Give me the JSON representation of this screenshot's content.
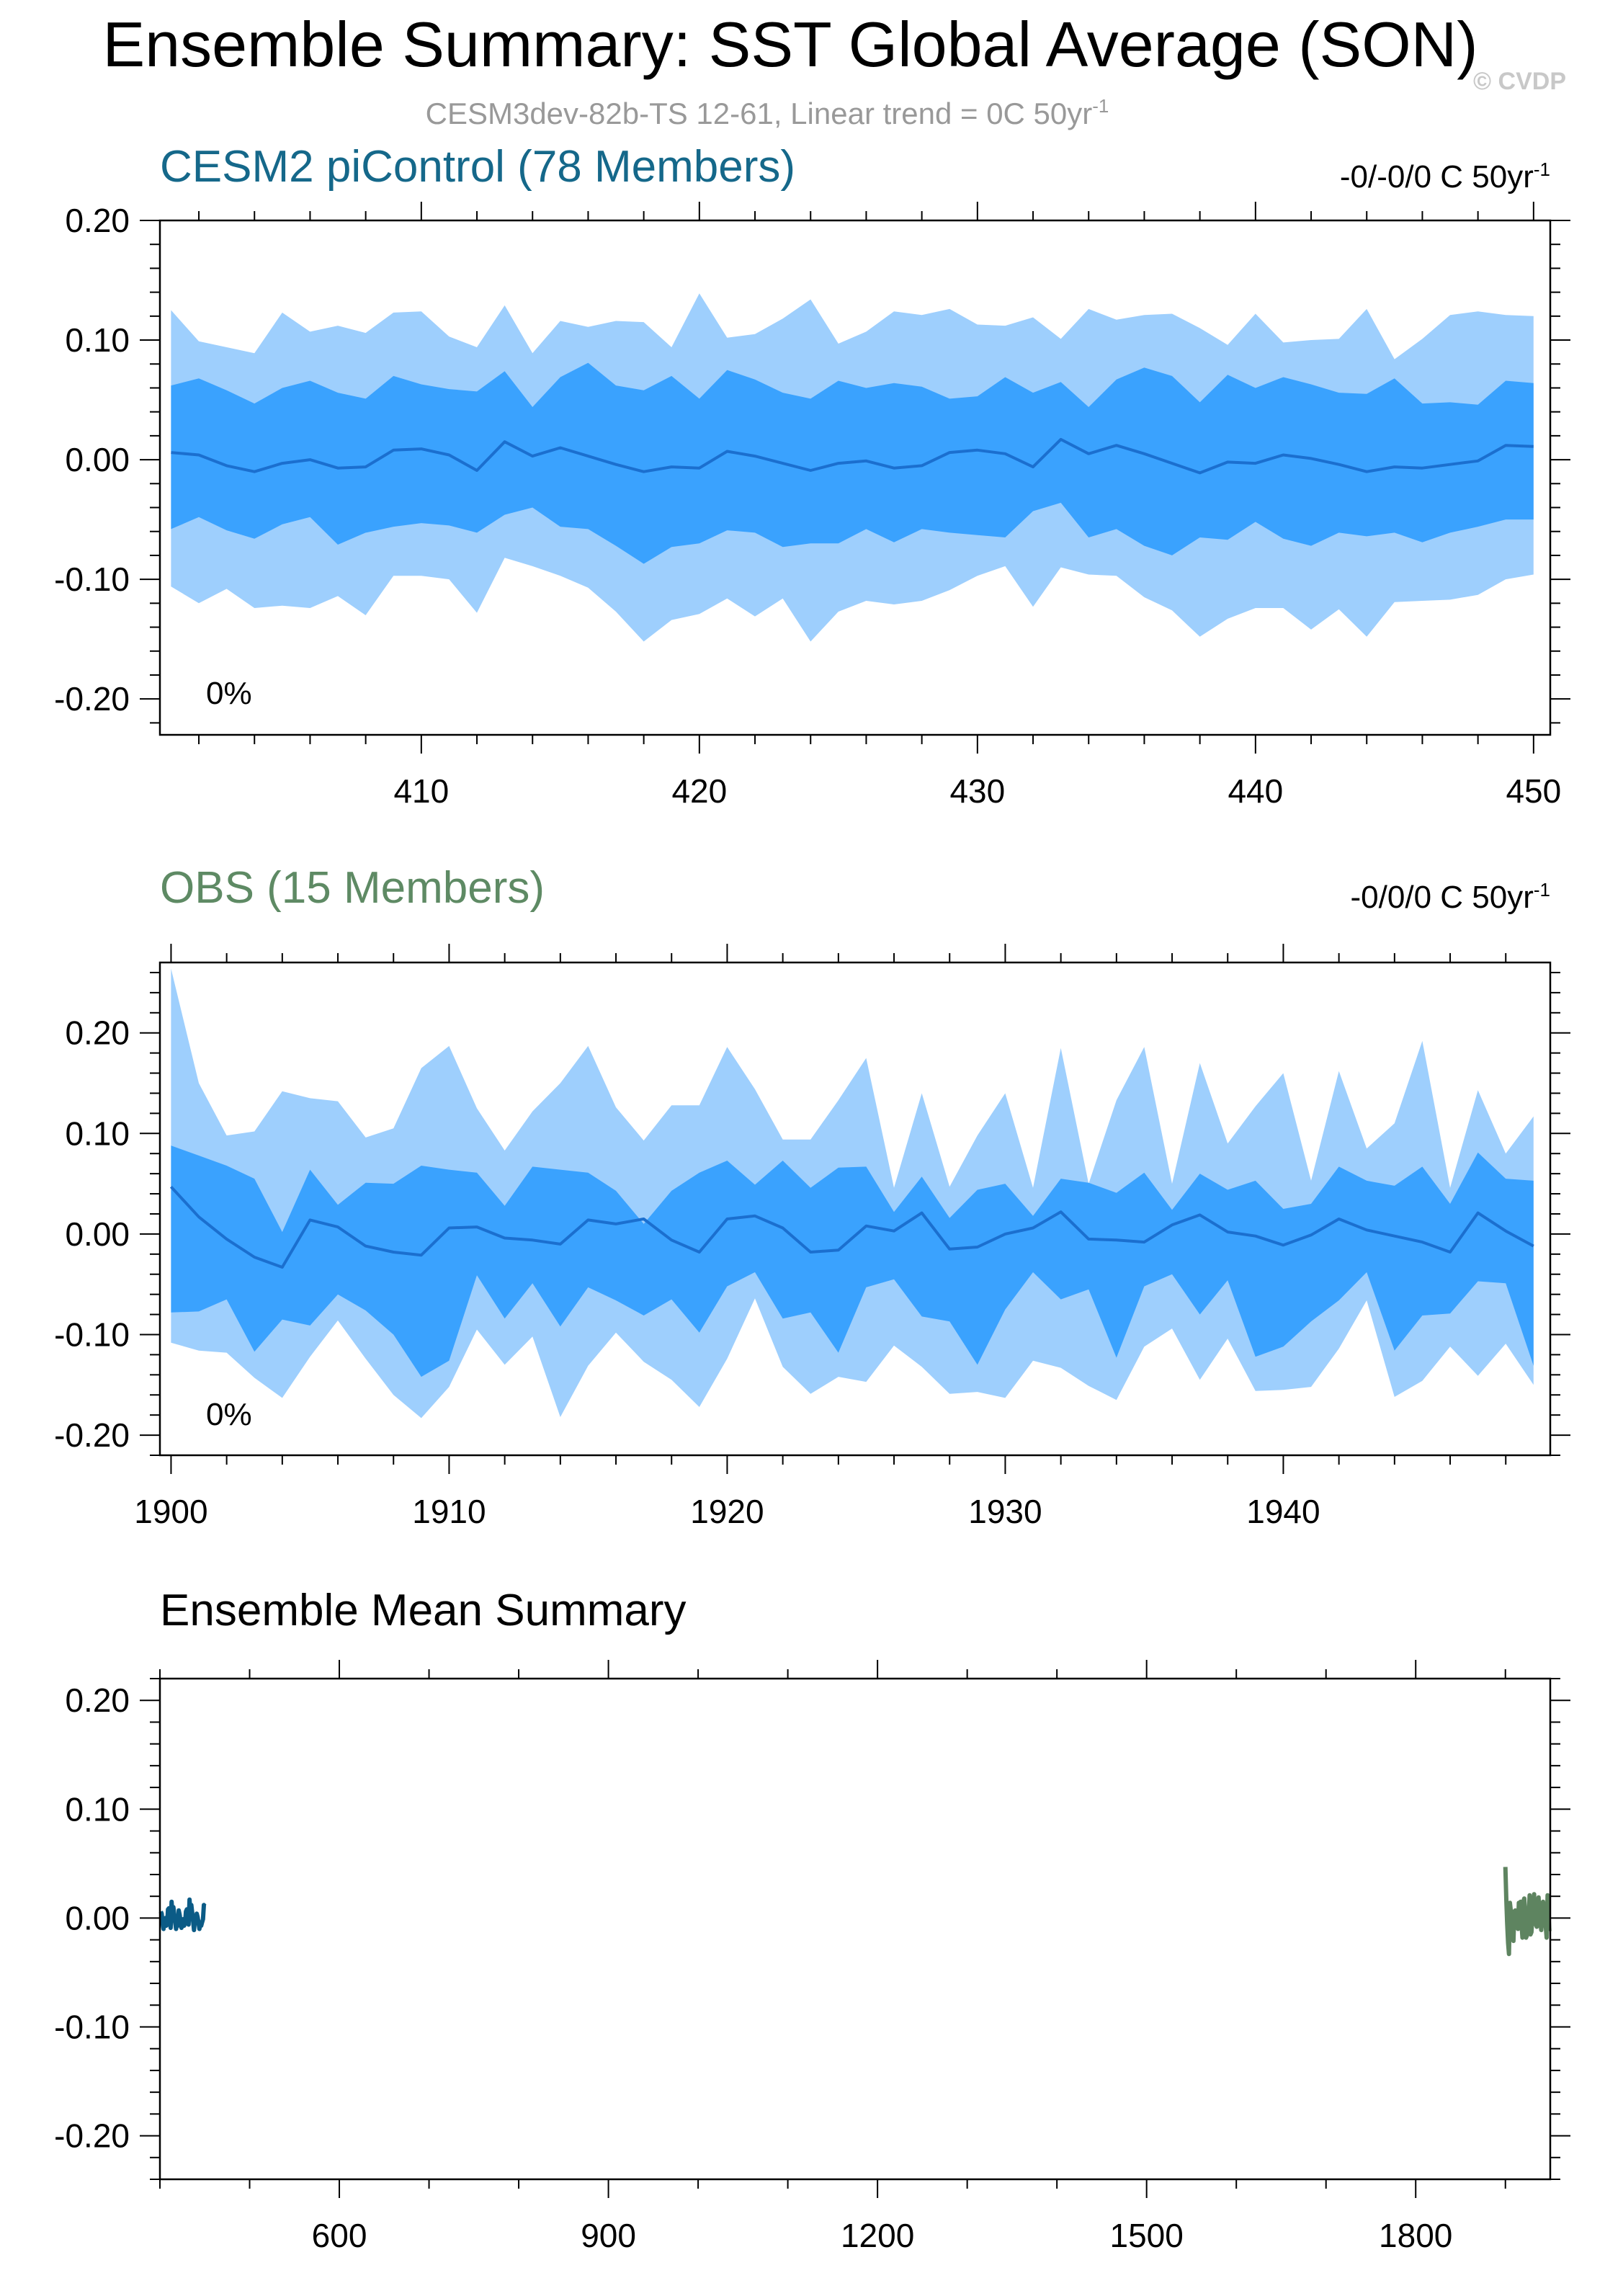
{
  "title": "Ensemble Summary: SST Global Average (SON)",
  "subtitle": "CESM3dev-82b-TS 12-61, Linear trend = 0C 50yr",
  "subtitle_sup": "-1",
  "watermark": "© CVDP",
  "colors": {
    "band_outer": "#9ecffd",
    "band_inner": "#3aa2fe",
    "model_mean": "#1b6fcf",
    "model_title": "#15688a",
    "obs_title": "#5e8a64",
    "summary_model": "#0b5b86",
    "summary_obs": "#5e8460",
    "axis": "#000000",
    "subtitle": "#999999",
    "watermark": "#c8c8c8"
  },
  "chart_data": [
    {
      "type": "area",
      "name": "CESM2 piControl",
      "title": "CESM2 piControl (78 Members)",
      "trend_label": "-0/-0/0 C 50yr",
      "trend_sup": "-1",
      "pct_label": "0%",
      "xlim": [
        400.6,
        450.6
      ],
      "ylim": [
        -0.23,
        0.2
      ],
      "yticks": [
        0.2,
        0.1,
        0.0,
        -0.1,
        -0.2
      ],
      "ytick_labels": [
        "0.20",
        "0.10",
        "0.00",
        "-0.10",
        "-0.20"
      ],
      "xticks": [
        410,
        420,
        430,
        440,
        450
      ],
      "xtick_labels": [
        "410",
        "420",
        "430",
        "440",
        "450"
      ],
      "x_start": 401,
      "x_step": 1,
      "series": [
        {
          "name": "max",
          "values": [
            0.125,
            0.099,
            0.094,
            0.089,
            0.123,
            0.107,
            0.112,
            0.106,
            0.123,
            0.124,
            0.103,
            0.094,
            0.129,
            0.089,
            0.116,
            0.111,
            0.116,
            0.115,
            0.094,
            0.139,
            0.102,
            0.105,
            0.118,
            0.134,
            0.097,
            0.107,
            0.124,
            0.121,
            0.126,
            0.113,
            0.112,
            0.119,
            0.101,
            0.126,
            0.117,
            0.121,
            0.122,
            0.11,
            0.096,
            0.122,
            0.098,
            0.1,
            0.101,
            0.126,
            0.084,
            0.101,
            0.121,
            0.124,
            0.121,
            0.12
          ]
        },
        {
          "name": "p84",
          "values": [
            0.062,
            0.068,
            0.058,
            0.047,
            0.06,
            0.066,
            0.056,
            0.051,
            0.07,
            0.063,
            0.059,
            0.057,
            0.074,
            0.044,
            0.069,
            0.081,
            0.062,
            0.058,
            0.07,
            0.051,
            0.075,
            0.067,
            0.056,
            0.051,
            0.066,
            0.06,
            0.064,
            0.061,
            0.051,
            0.053,
            0.069,
            0.056,
            0.065,
            0.044,
            0.067,
            0.077,
            0.07,
            0.048,
            0.071,
            0.06,
            0.069,
            0.063,
            0.056,
            0.055,
            0.068,
            0.047,
            0.048,
            0.046,
            0.066,
            0.064
          ]
        },
        {
          "name": "mean",
          "values": [
            0.006,
            0.004,
            -0.005,
            -0.01,
            -0.003,
            0.0,
            -0.007,
            -0.006,
            0.008,
            0.009,
            0.004,
            -0.009,
            0.015,
            0.003,
            0.01,
            0.003,
            -0.004,
            -0.01,
            -0.006,
            -0.007,
            0.007,
            0.003,
            -0.003,
            -0.009,
            -0.003,
            -0.001,
            -0.007,
            -0.005,
            0.006,
            0.008,
            0.005,
            -0.006,
            0.017,
            0.005,
            0.012,
            0.005,
            -0.003,
            -0.011,
            -0.002,
            -0.003,
            0.004,
            0.001,
            -0.004,
            -0.01,
            -0.006,
            -0.007,
            -0.004,
            -0.001,
            0.012,
            0.011
          ]
        },
        {
          "name": "p16",
          "values": [
            -0.058,
            -0.048,
            -0.059,
            -0.066,
            -0.054,
            -0.048,
            -0.071,
            -0.061,
            -0.056,
            -0.053,
            -0.055,
            -0.061,
            -0.046,
            -0.04,
            -0.056,
            -0.058,
            -0.072,
            -0.087,
            -0.073,
            -0.07,
            -0.059,
            -0.061,
            -0.073,
            -0.07,
            -0.07,
            -0.058,
            -0.069,
            -0.058,
            -0.061,
            -0.063,
            -0.065,
            -0.043,
            -0.036,
            -0.065,
            -0.058,
            -0.072,
            -0.08,
            -0.065,
            -0.067,
            -0.052,
            -0.066,
            -0.072,
            -0.061,
            -0.064,
            -0.061,
            -0.069,
            -0.061,
            -0.056,
            -0.05,
            -0.05
          ]
        },
        {
          "name": "min",
          "values": [
            -0.106,
            -0.12,
            -0.108,
            -0.124,
            -0.122,
            -0.124,
            -0.114,
            -0.13,
            -0.097,
            -0.097,
            -0.1,
            -0.128,
            -0.082,
            -0.089,
            -0.097,
            -0.107,
            -0.127,
            -0.152,
            -0.134,
            -0.129,
            -0.116,
            -0.131,
            -0.116,
            -0.152,
            -0.127,
            -0.118,
            -0.121,
            -0.118,
            -0.109,
            -0.097,
            -0.089,
            -0.123,
            -0.09,
            -0.096,
            -0.097,
            -0.115,
            -0.126,
            -0.148,
            -0.133,
            -0.124,
            -0.124,
            -0.142,
            -0.125,
            -0.148,
            -0.119,
            -0.118,
            -0.117,
            -0.113,
            -0.1,
            -0.096
          ]
        }
      ]
    },
    {
      "type": "area",
      "name": "OBS",
      "title": "OBS (15 Members)",
      "trend_label": "-0/0/0 C 50yr",
      "trend_sup": "-1",
      "pct_label": "0%",
      "xlim": [
        1899.6,
        1949.6
      ],
      "ylim": [
        -0.22,
        0.27
      ],
      "yticks": [
        0.2,
        0.1,
        0.0,
        -0.1,
        -0.2
      ],
      "ytick_labels": [
        "0.20",
        "0.10",
        "0.00",
        "-0.10",
        "-0.20"
      ],
      "xticks": [
        1900,
        1910,
        1920,
        1930,
        1940
      ],
      "xtick_labels": [
        "1900",
        "1910",
        "1920",
        "1930",
        "1940"
      ],
      "x_start": 1900,
      "x_step": 1,
      "series": [
        {
          "name": "max",
          "values": [
            0.264,
            0.15,
            0.098,
            0.102,
            0.142,
            0.135,
            0.132,
            0.096,
            0.105,
            0.165,
            0.187,
            0.125,
            0.083,
            0.122,
            0.15,
            0.187,
            0.126,
            0.093,
            0.128,
            0.128,
            0.186,
            0.144,
            0.094,
            0.094,
            0.133,
            0.175,
            0.046,
            0.14,
            0.047,
            0.098,
            0.14,
            0.046,
            0.185,
            0.05,
            0.133,
            0.186,
            0.05,
            0.17,
            0.09,
            0.127,
            0.16,
            0.053,
            0.162,
            0.085,
            0.11,
            0.192,
            0.046,
            0.143,
            0.08,
            0.117
          ]
        },
        {
          "name": "p84",
          "values": [
            0.088,
            0.078,
            0.068,
            0.055,
            0.002,
            0.064,
            0.029,
            0.051,
            0.05,
            0.068,
            0.064,
            0.061,
            0.028,
            0.067,
            0.064,
            0.061,
            0.043,
            0.01,
            0.043,
            0.061,
            0.073,
            0.049,
            0.073,
            0.046,
            0.066,
            0.067,
            0.022,
            0.057,
            0.016,
            0.044,
            0.05,
            0.018,
            0.055,
            0.051,
            0.041,
            0.061,
            0.024,
            0.06,
            0.044,
            0.053,
            0.025,
            0.03,
            0.067,
            0.053,
            0.048,
            0.067,
            0.03,
            0.081,
            0.055,
            0.053
          ]
        },
        {
          "name": "mean",
          "values": [
            0.047,
            0.017,
            -0.005,
            -0.023,
            -0.033,
            0.014,
            0.007,
            -0.012,
            -0.018,
            -0.021,
            0.006,
            0.007,
            -0.004,
            -0.006,
            -0.01,
            0.014,
            0.01,
            0.015,
            -0.006,
            -0.018,
            0.015,
            0.018,
            0.006,
            -0.018,
            -0.016,
            0.008,
            0.003,
            0.021,
            -0.015,
            -0.013,
            0.0,
            0.006,
            0.022,
            -0.005,
            -0.006,
            -0.008,
            0.009,
            0.019,
            0.002,
            -0.002,
            -0.011,
            -0.001,
            0.015,
            0.004,
            -0.002,
            -0.008,
            -0.018,
            0.021,
            0.003,
            -0.012
          ]
        },
        {
          "name": "p16",
          "values": [
            -0.078,
            -0.077,
            -0.065,
            -0.117,
            -0.085,
            -0.091,
            -0.06,
            -0.076,
            -0.1,
            -0.142,
            -0.126,
            -0.041,
            -0.084,
            -0.049,
            -0.092,
            -0.053,
            -0.066,
            -0.081,
            -0.065,
            -0.098,
            -0.052,
            -0.038,
            -0.084,
            -0.078,
            -0.118,
            -0.053,
            -0.045,
            -0.082,
            -0.087,
            -0.13,
            -0.075,
            -0.038,
            -0.065,
            -0.055,
            -0.123,
            -0.052,
            -0.04,
            -0.08,
            -0.046,
            -0.122,
            -0.112,
            -0.087,
            -0.066,
            -0.038,
            -0.116,
            -0.081,
            -0.079,
            -0.047,
            -0.049,
            -0.131
          ]
        },
        {
          "name": "min",
          "values": [
            -0.108,
            -0.116,
            -0.118,
            -0.143,
            -0.163,
            -0.122,
            -0.086,
            -0.124,
            -0.16,
            -0.183,
            -0.152,
            -0.095,
            -0.13,
            -0.102,
            -0.182,
            -0.131,
            -0.098,
            -0.127,
            -0.145,
            -0.172,
            -0.124,
            -0.064,
            -0.132,
            -0.159,
            -0.142,
            -0.147,
            -0.111,
            -0.132,
            -0.159,
            -0.157,
            -0.163,
            -0.126,
            -0.133,
            -0.151,
            -0.165,
            -0.112,
            -0.094,
            -0.145,
            -0.104,
            -0.156,
            -0.155,
            -0.152,
            -0.114,
            -0.066,
            -0.162,
            -0.146,
            -0.112,
            -0.141,
            -0.109,
            -0.15
          ]
        }
      ]
    },
    {
      "type": "line",
      "title": "Ensemble Mean Summary",
      "xlim": [
        400,
        1950
      ],
      "ylim": [
        -0.24,
        0.22
      ],
      "yticks": [
        0.2,
        0.1,
        0.0,
        -0.1,
        -0.2
      ],
      "ytick_labels": [
        "0.20",
        "0.10",
        "0.00",
        "-0.10",
        "-0.20"
      ],
      "xticks": [
        600,
        900,
        1200,
        1500,
        1800
      ],
      "xtick_labels": [
        "600",
        "900",
        "1200",
        "1500",
        "1800"
      ],
      "series": [
        {
          "name": "CESM2 piControl",
          "x_start": 401,
          "x_step": 1,
          "color_key": "summary_model",
          "values": [
            0.006,
            0.004,
            -0.005,
            -0.01,
            -0.003,
            0.0,
            -0.007,
            -0.006,
            0.008,
            0.009,
            0.004,
            -0.009,
            0.015,
            0.003,
            0.01,
            0.003,
            -0.004,
            -0.01,
            -0.006,
            -0.007,
            0.007,
            0.003,
            -0.003,
            -0.009,
            -0.003,
            -0.001,
            -0.007,
            -0.005,
            0.006,
            0.008,
            0.005,
            -0.006,
            0.017,
            0.005,
            0.012,
            0.005,
            -0.003,
            -0.011,
            -0.002,
            -0.003,
            0.004,
            0.001,
            -0.004,
            -0.01,
            -0.006,
            -0.007,
            -0.004,
            -0.001,
            0.012,
            0.011
          ]
        },
        {
          "name": "OBS",
          "x_start": 1900,
          "x_step": 1,
          "color_key": "summary_obs",
          "values": [
            0.047,
            0.017,
            -0.005,
            -0.023,
            -0.033,
            0.014,
            0.007,
            -0.012,
            -0.018,
            -0.021,
            0.006,
            0.007,
            -0.004,
            -0.006,
            -0.01,
            0.014,
            0.01,
            0.015,
            -0.006,
            -0.018,
            0.015,
            0.018,
            0.006,
            -0.018,
            -0.016,
            0.008,
            0.003,
            0.021,
            -0.015,
            -0.013,
            0.0,
            0.006,
            0.022,
            -0.005,
            -0.006,
            -0.008,
            0.009,
            0.019,
            0.002,
            -0.002,
            -0.011,
            -0.001,
            0.015,
            0.004,
            -0.002,
            -0.008,
            -0.018,
            0.021,
            0.003,
            -0.012
          ]
        }
      ]
    }
  ]
}
